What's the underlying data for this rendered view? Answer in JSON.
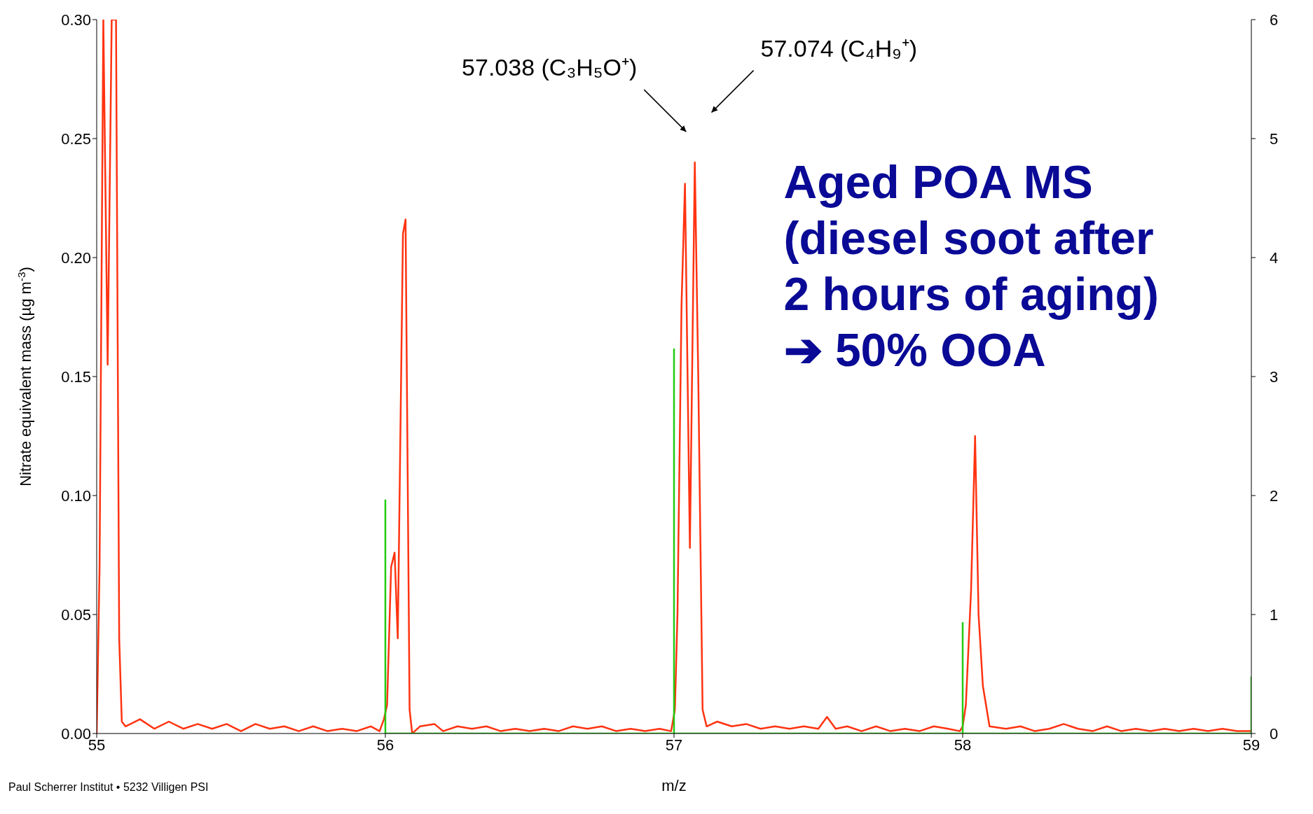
{
  "chart_data": {
    "type": "line",
    "xlabel": "m/z",
    "ylabel": "Nitrate equivalent mass (µg m$^{-3}$)",
    "xlim": [
      55,
      59
    ],
    "xticks": [
      55,
      56,
      57,
      58,
      59
    ],
    "ylim": [
      0,
      0.3
    ],
    "yticks": [
      {
        "value": 0,
        "label": "0.00"
      },
      {
        "value": 0.05,
        "label": "0.05"
      },
      {
        "value": 0.1,
        "label": "0.10"
      },
      {
        "value": 0.15,
        "label": "0.15"
      },
      {
        "value": 0.2,
        "label": "0.20"
      },
      {
        "value": 0.25,
        "label": "0.25"
      },
      {
        "value": 0.3,
        "label": "0.30"
      }
    ],
    "y2lim": [
      0,
      6
    ],
    "y2ticks": [
      0,
      1,
      2,
      3,
      4,
      5,
      6
    ],
    "marker": "none",
    "line_style": "solid",
    "series": [
      {
        "color": "#ff3311",
        "x": [
          55.0,
          55.01,
          55.023,
          55.038,
          55.052,
          55.067,
          55.078,
          55.087,
          55.1,
          55.15,
          55.2,
          55.25,
          55.3,
          55.35,
          55.4,
          55.45,
          55.5,
          55.55,
          55.6,
          55.65,
          55.7,
          55.75,
          55.8,
          55.85,
          55.9,
          55.95,
          55.98,
          55.995,
          56.006,
          56.02,
          56.032,
          56.043,
          56.061,
          56.07,
          56.084,
          56.093,
          56.12,
          56.17,
          56.2,
          56.25,
          56.3,
          56.35,
          56.4,
          56.45,
          56.5,
          56.55,
          56.6,
          56.65,
          56.7,
          56.75,
          56.8,
          56.85,
          56.9,
          56.95,
          56.99,
          57.003,
          57.012,
          57.026,
          57.038,
          57.055,
          57.072,
          57.084,
          57.099,
          57.113,
          57.15,
          57.2,
          57.25,
          57.3,
          57.35,
          57.4,
          57.45,
          57.5,
          57.53,
          57.56,
          57.6,
          57.65,
          57.7,
          57.75,
          57.8,
          57.85,
          57.9,
          57.95,
          57.99,
          58.0,
          58.011,
          58.029,
          58.043,
          58.055,
          58.07,
          58.093,
          58.15,
          58.2,
          58.25,
          58.3,
          58.35,
          58.4,
          58.45,
          58.5,
          58.55,
          58.6,
          58.65,
          58.7,
          58.75,
          58.8,
          58.85,
          58.9,
          58.95,
          59.0
        ],
        "values": [
          0,
          0.07,
          0.3,
          0.155,
          0.3,
          0.3,
          0.04,
          0.005,
          0.003,
          0.006,
          0.002,
          0.005,
          0.002,
          0.004,
          0.002,
          0.004,
          0.001,
          0.004,
          0.002,
          0.003,
          0.001,
          0.003,
          0.001,
          0.002,
          0.001,
          0.003,
          0.001,
          0.006,
          0.012,
          0.07,
          0.076,
          0.04,
          0.21,
          0.216,
          0.01,
          0,
          0.003,
          0.004,
          0.001,
          0.003,
          0.002,
          0.003,
          0.001,
          0.002,
          0.001,
          0.002,
          0.001,
          0.003,
          0.002,
          0.003,
          0.001,
          0.002,
          0.001,
          0.002,
          0.001,
          0.01,
          0.05,
          0.18,
          0.231,
          0.078,
          0.24,
          0.15,
          0.01,
          0.003,
          0.005,
          0.003,
          0.004,
          0.002,
          0.003,
          0.002,
          0.003,
          0.002,
          0.007,
          0.002,
          0.003,
          0.001,
          0.003,
          0.001,
          0.002,
          0.001,
          0.003,
          0.002,
          0.001,
          0.003,
          0.012,
          0.06,
          0.125,
          0.05,
          0.02,
          0.003,
          0.002,
          0.003,
          0.001,
          0.002,
          0.004,
          0.002,
          0.001,
          0.003,
          0.001,
          0.002,
          0.001,
          0.002,
          0.001,
          0.002,
          0.001,
          0.002,
          0.001,
          0.001
        ]
      },
      {
        "color": "#22cc11",
        "axis": "y2",
        "x": [
          56,
          56,
          56,
          57,
          57,
          57,
          58,
          58,
          58,
          59,
          59
        ],
        "values": [
          0,
          1.96,
          0,
          0,
          3.23,
          0,
          0,
          0.93,
          0,
          0,
          0.48
        ]
      }
    ],
    "annotations": [
      "57.038 (C₃H₅O⁺)",
      "57.074 (C₄H₉⁺)",
      "Aged POA MS\n(diesel soot after\n2 hours of aging)\n➔ 50% OOA",
      "Paul Scherrer Institut • 5232 Villigen PSI"
    ]
  }
}
